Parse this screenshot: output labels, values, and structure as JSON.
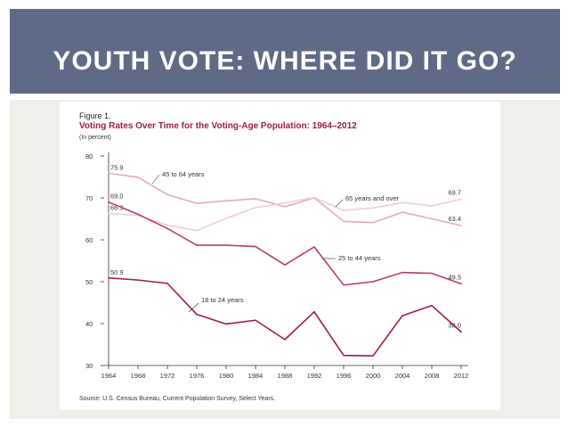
{
  "slide": {
    "title": "YOUTH VOTE: WHERE DID IT GO?",
    "colors": {
      "header_bg": "#5f6a87",
      "stage_bg": "#eeefe9"
    }
  },
  "figure": {
    "label": "Figure 1.",
    "title": "Voting Rates Over Time for the Voting-Age Population: 1964–2012",
    "units": "(In percent)",
    "source": "Source: U.S. Census Bureau, Current Population Survey, Select Years."
  },
  "chart_data": {
    "type": "line",
    "x": [
      1964,
      1968,
      1972,
      1976,
      1980,
      1984,
      1988,
      1992,
      1996,
      2000,
      2004,
      2008,
      2012
    ],
    "xticks": [
      "1964",
      "1968",
      "1972",
      "1976",
      "1980",
      "1984",
      "1988",
      "1992",
      "1996",
      "2000",
      "2004",
      "2008",
      "2012"
    ],
    "yticks": [
      30,
      40,
      50,
      60,
      70,
      80
    ],
    "ylim": [
      30,
      80
    ],
    "grid": false,
    "series": [
      {
        "name": "45 to 64 years",
        "color": "#e6a9c4",
        "values": [
          75.9,
          74.9,
          70.8,
          68.7,
          69.3,
          69.8,
          67.9,
          70.0,
          64.4,
          64.1,
          66.6,
          65.0,
          63.4
        ],
        "start_label": "75.9",
        "end_label": "63.4"
      },
      {
        "name": "65 years and over",
        "color": "#f2cbdc",
        "values": [
          66.3,
          65.8,
          63.5,
          62.2,
          65.1,
          67.7,
          68.8,
          70.1,
          67.0,
          67.6,
          68.9,
          68.1,
          69.7
        ],
        "start_label": "66.3",
        "end_label": "69.7"
      },
      {
        "name": "25 to 44 years",
        "color": "#b83d71",
        "values": [
          69.0,
          66.1,
          62.7,
          58.7,
          58.7,
          58.4,
          54.0,
          58.3,
          49.2,
          50.0,
          52.2,
          52.0,
          49.5
        ],
        "start_label": "69.0",
        "end_label": "49.5"
      },
      {
        "name": "18 to 24 years",
        "color": "#a1184b",
        "values": [
          50.9,
          50.4,
          49.6,
          42.2,
          39.9,
          40.8,
          36.2,
          42.8,
          32.4,
          32.3,
          41.9,
          44.3,
          38.0
        ],
        "start_label": "50.9",
        "end_label": "38.0"
      }
    ]
  }
}
